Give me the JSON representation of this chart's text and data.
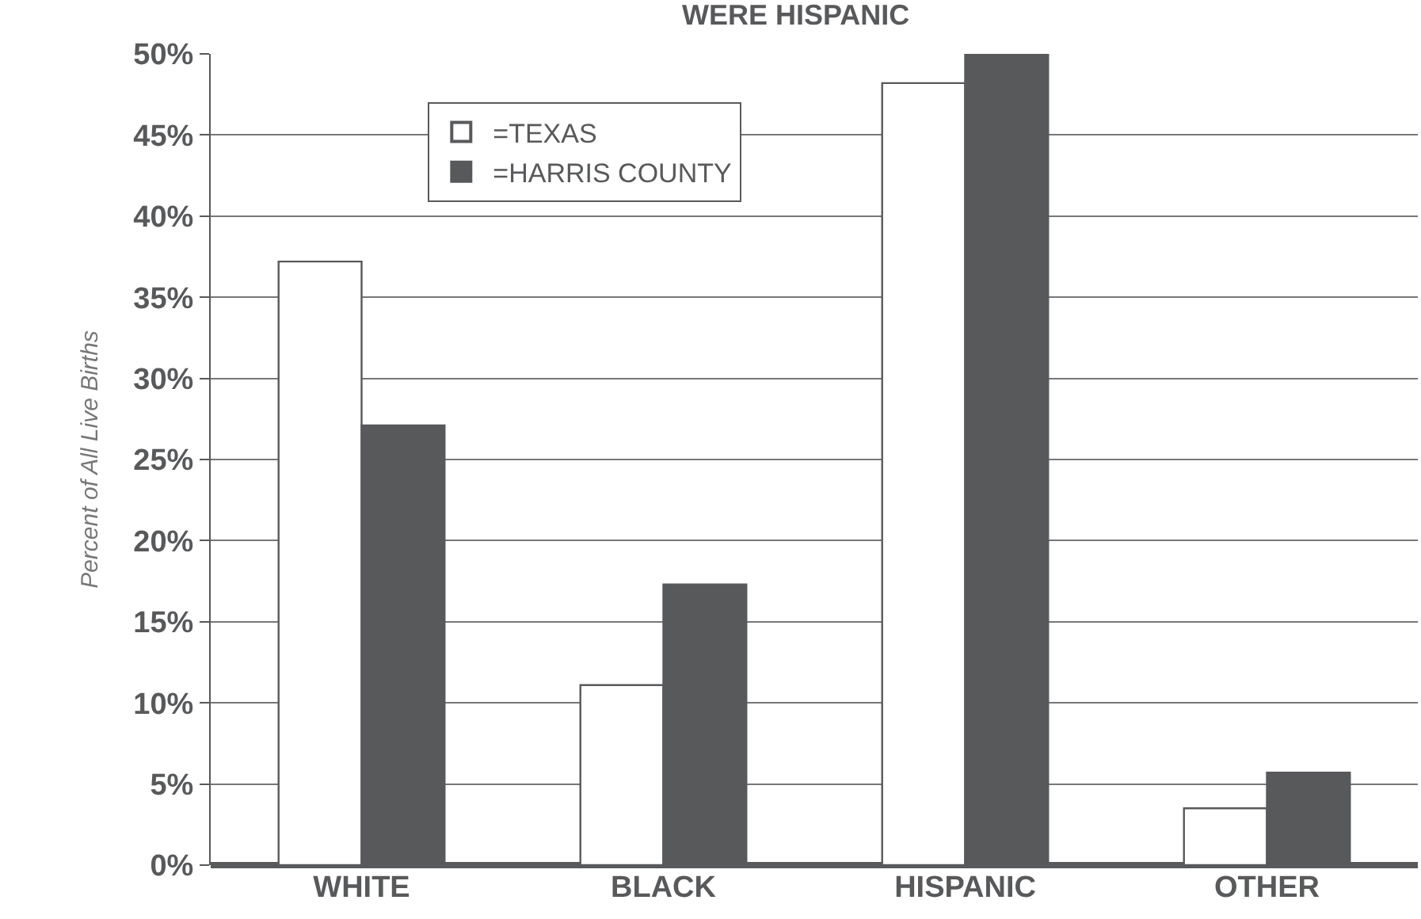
{
  "chart_data": {
    "type": "bar",
    "title": "WERE HISPANIC",
    "ylabel": "Percent of All Live Births",
    "categories": [
      "WHITE",
      "BLACK",
      "HISPANIC",
      "OTHER"
    ],
    "series": [
      {
        "name": "=TEXAS",
        "color": "#ffffff",
        "values": [
          37.2,
          11.1,
          48.2,
          3.5
        ]
      },
      {
        "name": "=HARRIS COUNTY",
        "color": "#58595b",
        "values": [
          27.1,
          17.3,
          50,
          5.7
        ]
      }
    ],
    "ylim": [
      0,
      50
    ],
    "yticks": [
      {
        "value": 0,
        "label": "0%"
      },
      {
        "value": 5,
        "label": "5%"
      },
      {
        "value": 10,
        "label": "10%"
      },
      {
        "value": 15,
        "label": "15%"
      },
      {
        "value": 20,
        "label": "20%"
      },
      {
        "value": 25,
        "label": "25%"
      },
      {
        "value": 30,
        "label": "30%"
      },
      {
        "value": 35,
        "label": "35%"
      },
      {
        "value": 40,
        "label": "40%"
      },
      {
        "value": 45,
        "label": "45%"
      },
      {
        "value": 50,
        "label": "50%"
      }
    ],
    "grid": "y",
    "legend": "top left"
  }
}
